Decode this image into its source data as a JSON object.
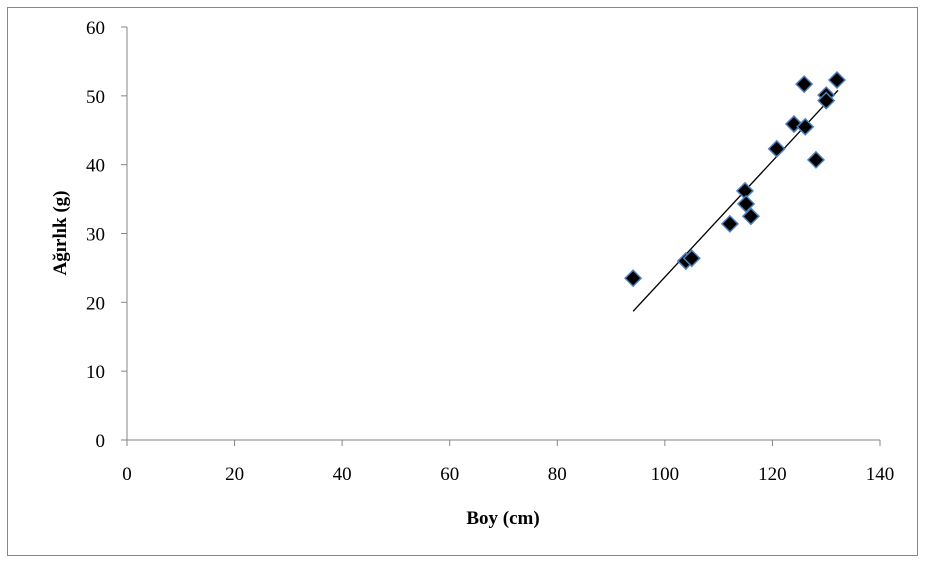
{
  "chart_data": {
    "type": "scatter",
    "x_label": "Boy (cm)",
    "y_label": "Ağırlık (g)",
    "series": [
      {
        "color": "#000000",
        "x": [
          94.1,
          103.9,
          105.0,
          112.1,
          114.9,
          115.1,
          116.0,
          120.8,
          124.0,
          125.9,
          126.1,
          128.1,
          130.0,
          130.0,
          132.0
        ],
        "values": [
          23.5,
          26.0,
          26.4,
          31.4,
          36.2,
          34.3,
          32.5,
          42.3,
          45.9,
          51.7,
          45.5,
          40.7,
          50.1,
          49.3,
          52.3
        ]
      }
    ],
    "trendline": {
      "x": [
        94.1,
        132.2
      ],
      "values": [
        18.7,
        50.8
      ],
      "color": "#000000"
    },
    "xlim": [
      0,
      140
    ],
    "xticks": [
      0,
      20,
      40,
      60,
      80,
      100,
      120,
      140
    ],
    "ylim": [
      0,
      60
    ],
    "yticks": [
      0,
      10,
      20,
      30,
      40,
      50,
      60
    ]
  }
}
